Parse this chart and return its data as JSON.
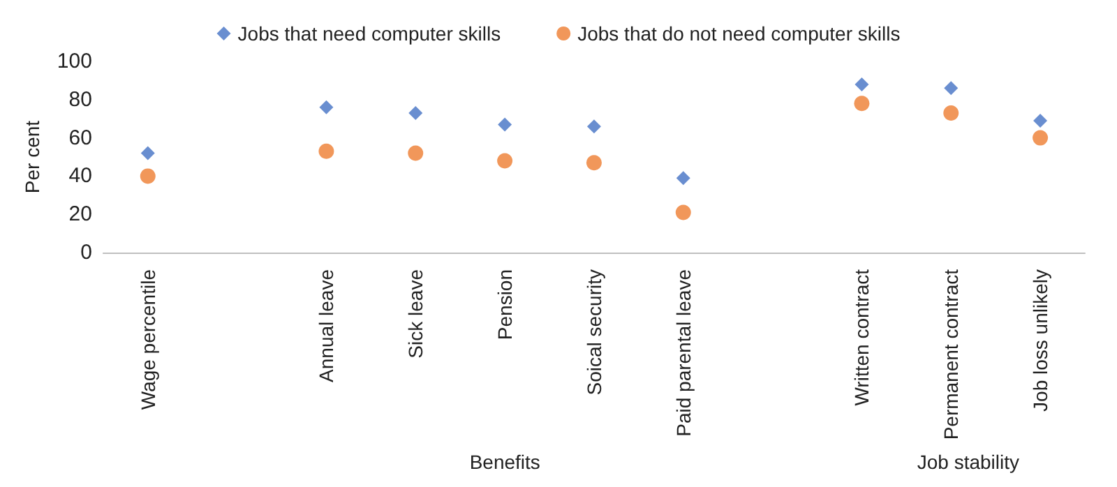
{
  "chart_data": {
    "type": "scatter",
    "ylabel": "Per cent",
    "categories": [
      "Wage percentile",
      null,
      "Annual leave",
      "Sick leave",
      "Pension",
      "Soical security",
      "Paid parental leave",
      null,
      "Written contract",
      "Permanent contract",
      "Job loss unlikely"
    ],
    "series": [
      {
        "name": "Jobs that need computer skills",
        "color": "#4472c4",
        "marker": "diamond",
        "values": [
          52,
          null,
          76,
          73,
          67,
          66,
          39,
          null,
          88,
          86,
          69
        ]
      },
      {
        "name": "Jobs that do not need computer skills",
        "color": "#ed7d31",
        "marker": "circle",
        "values": [
          40,
          null,
          53,
          52,
          48,
          47,
          21,
          null,
          78,
          73,
          60
        ]
      }
    ],
    "ylim": [
      0,
      100
    ],
    "yticks": [
      0,
      20,
      40,
      60,
      80,
      100
    ],
    "grid": false,
    "legend": "top",
    "annotations": [
      "Benefits",
      "Job stability"
    ]
  }
}
